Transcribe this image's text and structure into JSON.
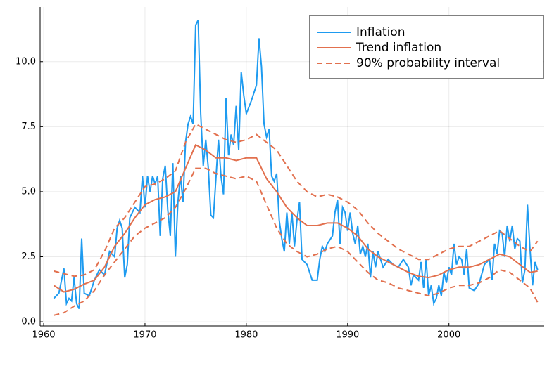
{
  "chart_data": {
    "type": "line",
    "xlim": [
      1959.65,
      2009.4
    ],
    "xticks": [
      1960,
      1970,
      1980,
      1990,
      2000
    ],
    "ylim": [
      -0.16,
      12.1
    ],
    "yticks": [
      {
        "value": 0,
        "label": "0.0"
      },
      {
        "value": 2.5,
        "label": "2.5"
      },
      {
        "value": 5,
        "label": "5.0"
      },
      {
        "value": 7.5,
        "label": "7.5"
      },
      {
        "value": 10,
        "label": "10.0"
      }
    ],
    "grid": true,
    "legend": "top-right",
    "series": [
      {
        "name": "Inflation",
        "color": "#1e9bf0",
        "x": [
          1961,
          1961.5,
          1962,
          1962.25,
          1962.5,
          1962.75,
          1963,
          1963.25,
          1963.5,
          1963.75,
          1964,
          1964.5,
          1965,
          1965.5,
          1966,
          1966.5,
          1967,
          1967.25,
          1967.5,
          1967.75,
          1968,
          1968.25,
          1968.5,
          1969,
          1969.5,
          1969.75,
          1970,
          1970.25,
          1970.5,
          1970.75,
          1971,
          1971.25,
          1971.5,
          1971.75,
          1972,
          1972.25,
          1972.5,
          1972.75,
          1973,
          1973.25,
          1973.5,
          1973.75,
          1974,
          1974.25,
          1974.5,
          1974.75,
          1975,
          1975.25,
          1975.5,
          1975.75,
          1976,
          1976.25,
          1976.5,
          1976.75,
          1977,
          1977.25,
          1977.5,
          1977.75,
          1978,
          1978.25,
          1978.5,
          1978.75,
          1979,
          1979.25,
          1979.5,
          1979.75,
          1980,
          1980.5,
          1981,
          1981.25,
          1981.5,
          1981.75,
          1982,
          1982.25,
          1982.5,
          1982.75,
          1983,
          1983.25,
          1983.5,
          1983.75,
          1984,
          1984.25,
          1984.5,
          1984.75,
          1985,
          1985.25,
          1985.5,
          1985.75,
          1986,
          1986.5,
          1987,
          1987.25,
          1987.5,
          1987.75,
          1988,
          1988.5,
          1988.75,
          1989,
          1989.25,
          1989.5,
          1989.75,
          1990,
          1990.25,
          1990.5,
          1990.75,
          1991,
          1991.25,
          1991.5,
          1991.75,
          1992,
          1992.25,
          1992.5,
          1992.75,
          1993,
          1993.5,
          1994,
          1994.5,
          1995,
          1995.5,
          1996,
          1996.25,
          1996.5,
          1997,
          1997.25,
          1997.5,
          1997.75,
          1998,
          1998.25,
          1998.5,
          1998.75,
          1999,
          1999.25,
          1999.5,
          1999.75,
          2000,
          2000.25,
          2000.5,
          2000.75,
          2001,
          2001.25,
          2001.5,
          2001.75,
          2002,
          2002.5,
          2003,
          2003.5,
          2004,
          2004.25,
          2004.5,
          2004.75,
          2005,
          2005.25,
          2005.5,
          2005.75,
          2006,
          2006.25,
          2006.5,
          2006.75,
          2007,
          2007.25,
          2007.5,
          2007.75,
          2008,
          2008.25,
          2008.5,
          2008.75
        ],
        "values": [
          0.9,
          1.1,
          2.05,
          0.7,
          0.9,
          0.8,
          1.7,
          0.7,
          0.5,
          3.2,
          1.1,
          1.0,
          1.6,
          2.0,
          1.8,
          2.7,
          2.5,
          3.6,
          3.9,
          3.6,
          1.7,
          2.2,
          4.0,
          4.4,
          4.2,
          5.6,
          4.4,
          5.6,
          5.0,
          5.6,
          5.3,
          5.6,
          3.3,
          5.5,
          6.0,
          4.3,
          3.3,
          6.1,
          2.5,
          4.6,
          5.6,
          4.6,
          6.9,
          7.6,
          7.9,
          7.6,
          11.4,
          11.6,
          8.0,
          6.0,
          7.0,
          5.9,
          4.1,
          4.0,
          5.5,
          7.0,
          5.6,
          4.9,
          8.6,
          6.4,
          7.2,
          6.8,
          8.3,
          6.6,
          9.6,
          8.7,
          8.0,
          8.5,
          9.1,
          10.9,
          9.8,
          7.6,
          7.1,
          7.4,
          5.6,
          5.4,
          5.7,
          3.9,
          3.2,
          2.7,
          4.2,
          3.0,
          4.2,
          2.9,
          3.9,
          4.6,
          2.4,
          2.3,
          2.2,
          1.6,
          1.6,
          2.4,
          2.9,
          2.7,
          3.0,
          3.3,
          4.2,
          4.7,
          3.0,
          4.4,
          4.2,
          3.5,
          4.2,
          3.4,
          3.0,
          3.7,
          2.6,
          2.9,
          2.5,
          3.0,
          1.7,
          2.7,
          2.1,
          2.7,
          2.1,
          2.4,
          2.2,
          2.1,
          2.4,
          2.1,
          1.4,
          1.8,
          1.6,
          2.3,
          1.3,
          2.4,
          1.0,
          1.4,
          0.7,
          0.9,
          1.4,
          1.0,
          1.9,
          1.5,
          2.1,
          1.8,
          3.0,
          2.2,
          2.5,
          2.4,
          1.8,
          2.8,
          1.3,
          1.2,
          1.5,
          2.2,
          2.4,
          1.6,
          3.0,
          2.6,
          3.5,
          3.4,
          2.5,
          3.7,
          3.1,
          3.7,
          2.8,
          3.2,
          3.1,
          1.5,
          2.0,
          4.5,
          2.8,
          1.4,
          2.3,
          2.0
        ]
      },
      {
        "name": "Trend inflation",
        "color": "#e2704e",
        "x": [
          1961,
          1962,
          1963,
          1964,
          1965,
          1966,
          1967,
          1968,
          1969,
          1970,
          1971,
          1972,
          1973,
          1974,
          1975,
          1976,
          1977,
          1978,
          1979,
          1980,
          1981,
          1982,
          1983,
          1984,
          1985,
          1986,
          1987,
          1988,
          1989,
          1990,
          1991,
          1992,
          1993,
          1994,
          1995,
          1996,
          1997,
          1998,
          1999,
          2000,
          2001,
          2002,
          2003,
          2004,
          2005,
          2006,
          2007,
          2008,
          2008.75
        ],
        "values": [
          1.4,
          1.15,
          1.25,
          1.45,
          1.6,
          2.1,
          2.9,
          3.4,
          4.0,
          4.5,
          4.7,
          4.8,
          5.0,
          5.9,
          6.8,
          6.6,
          6.3,
          6.3,
          6.2,
          6.3,
          6.3,
          5.5,
          5.0,
          4.4,
          4.0,
          3.7,
          3.7,
          3.8,
          3.8,
          3.6,
          3.3,
          2.8,
          2.5,
          2.3,
          2.1,
          1.9,
          1.75,
          1.7,
          1.8,
          2.0,
          2.1,
          2.1,
          2.2,
          2.4,
          2.6,
          2.5,
          2.2,
          1.9,
          1.95
        ]
      },
      {
        "name": "90% probability interval",
        "color": "#e2704e",
        "dashed": true,
        "x": [
          1961,
          1962,
          1963,
          1964,
          1965,
          1966,
          1967,
          1968,
          1969,
          1970,
          1971,
          1972,
          1973,
          1974,
          1975,
          1976,
          1977,
          1978,
          1979,
          1980,
          1981,
          1982,
          1983,
          1984,
          1985,
          1986,
          1987,
          1988,
          1989,
          1990,
          1991,
          1992,
          1993,
          1994,
          1995,
          1996,
          1997,
          1998,
          1999,
          2000,
          2001,
          2002,
          2003,
          2004,
          2005,
          2006,
          2007,
          2008,
          2008.75
        ],
        "upper": [
          1.95,
          1.85,
          1.75,
          1.8,
          2.0,
          2.7,
          3.6,
          4.0,
          4.6,
          5.2,
          5.3,
          5.5,
          5.8,
          6.9,
          7.6,
          7.4,
          7.2,
          7.0,
          6.9,
          7.0,
          7.2,
          6.9,
          6.6,
          6.0,
          5.4,
          5.0,
          4.8,
          4.9,
          4.8,
          4.6,
          4.3,
          3.8,
          3.4,
          3.1,
          2.8,
          2.6,
          2.4,
          2.4,
          2.6,
          2.8,
          2.9,
          2.9,
          3.1,
          3.3,
          3.5,
          3.2,
          2.9,
          2.7,
          3.1
        ],
        "lower": [
          0.25,
          0.35,
          0.6,
          0.8,
          1.2,
          1.8,
          2.3,
          2.8,
          3.3,
          3.6,
          3.8,
          4.0,
          4.4,
          5.1,
          5.9,
          5.9,
          5.7,
          5.6,
          5.5,
          5.6,
          5.4,
          4.5,
          3.6,
          3.0,
          2.7,
          2.5,
          2.6,
          2.8,
          2.9,
          2.7,
          2.3,
          1.9,
          1.6,
          1.5,
          1.3,
          1.2,
          1.1,
          1.0,
          1.1,
          1.3,
          1.4,
          1.4,
          1.5,
          1.7,
          2.0,
          1.9,
          1.6,
          1.3,
          0.75
        ]
      }
    ]
  }
}
